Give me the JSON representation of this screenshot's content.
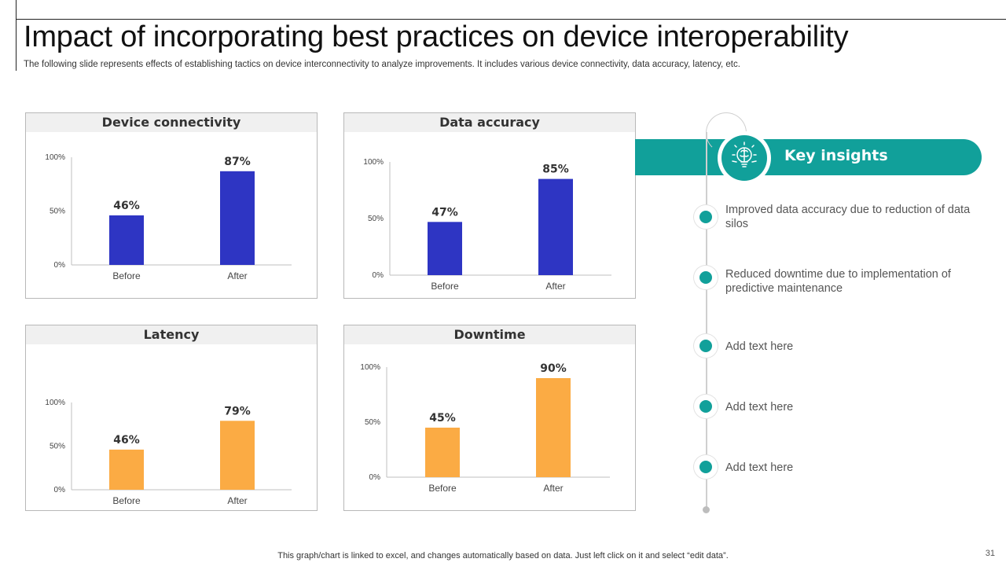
{
  "title": "Impact of incorporating best practices on device interoperability",
  "subtitle": "The following slide represents effects of establishing tactics on device interconnectivity to analyze improvements. It includes various device connectivity, data accuracy, latency, etc.",
  "footer": "This graph/chart is linked to excel, and changes automatically based on data. Just left click on it and select “edit data”.",
  "page_number": "31",
  "colors": {
    "blue": "#2e35c3",
    "orange": "#fbab44",
    "teal": "#11a09a"
  },
  "chart_data": [
    {
      "type": "bar",
      "title": "Device connectivity",
      "categories": [
        "Before",
        "After"
      ],
      "values": [
        46,
        87
      ],
      "data_labels": [
        "46%",
        "87%"
      ],
      "y_ticks": [
        "0%",
        "50%",
        "100%"
      ],
      "ylim": [
        0,
        100
      ],
      "color": "#2e35c3"
    },
    {
      "type": "bar",
      "title": "Data accuracy",
      "categories": [
        "Before",
        "After"
      ],
      "values": [
        47,
        85
      ],
      "data_labels": [
        "47%",
        "85%"
      ],
      "y_ticks": [
        "0%",
        "50%",
        "100%"
      ],
      "ylim": [
        0,
        100
      ],
      "color": "#2e35c3"
    },
    {
      "type": "bar",
      "title": "Latency",
      "categories": [
        "Before",
        "After"
      ],
      "values": [
        46,
        79
      ],
      "data_labels": [
        "46%",
        "79%"
      ],
      "y_ticks": [
        "0%",
        "50%",
        "100%"
      ],
      "ylim": [
        0,
        100
      ],
      "color": "#fbab44"
    },
    {
      "type": "bar",
      "title": "Downtime",
      "categories": [
        "Before",
        "After"
      ],
      "values": [
        45,
        90
      ],
      "data_labels": [
        "45%",
        "90%"
      ],
      "y_ticks": [
        "0%",
        "50%",
        "100%"
      ],
      "ylim": [
        0,
        100
      ],
      "color": "#fbab44"
    }
  ],
  "insights": {
    "title": "Key insights",
    "icon": "brain-bulb-icon",
    "items": [
      "Improved data accuracy due to reduction of data silos",
      "Reduced downtime due to implementation of predictive maintenance",
      "Add text here",
      "Add text here",
      "Add text here"
    ]
  }
}
